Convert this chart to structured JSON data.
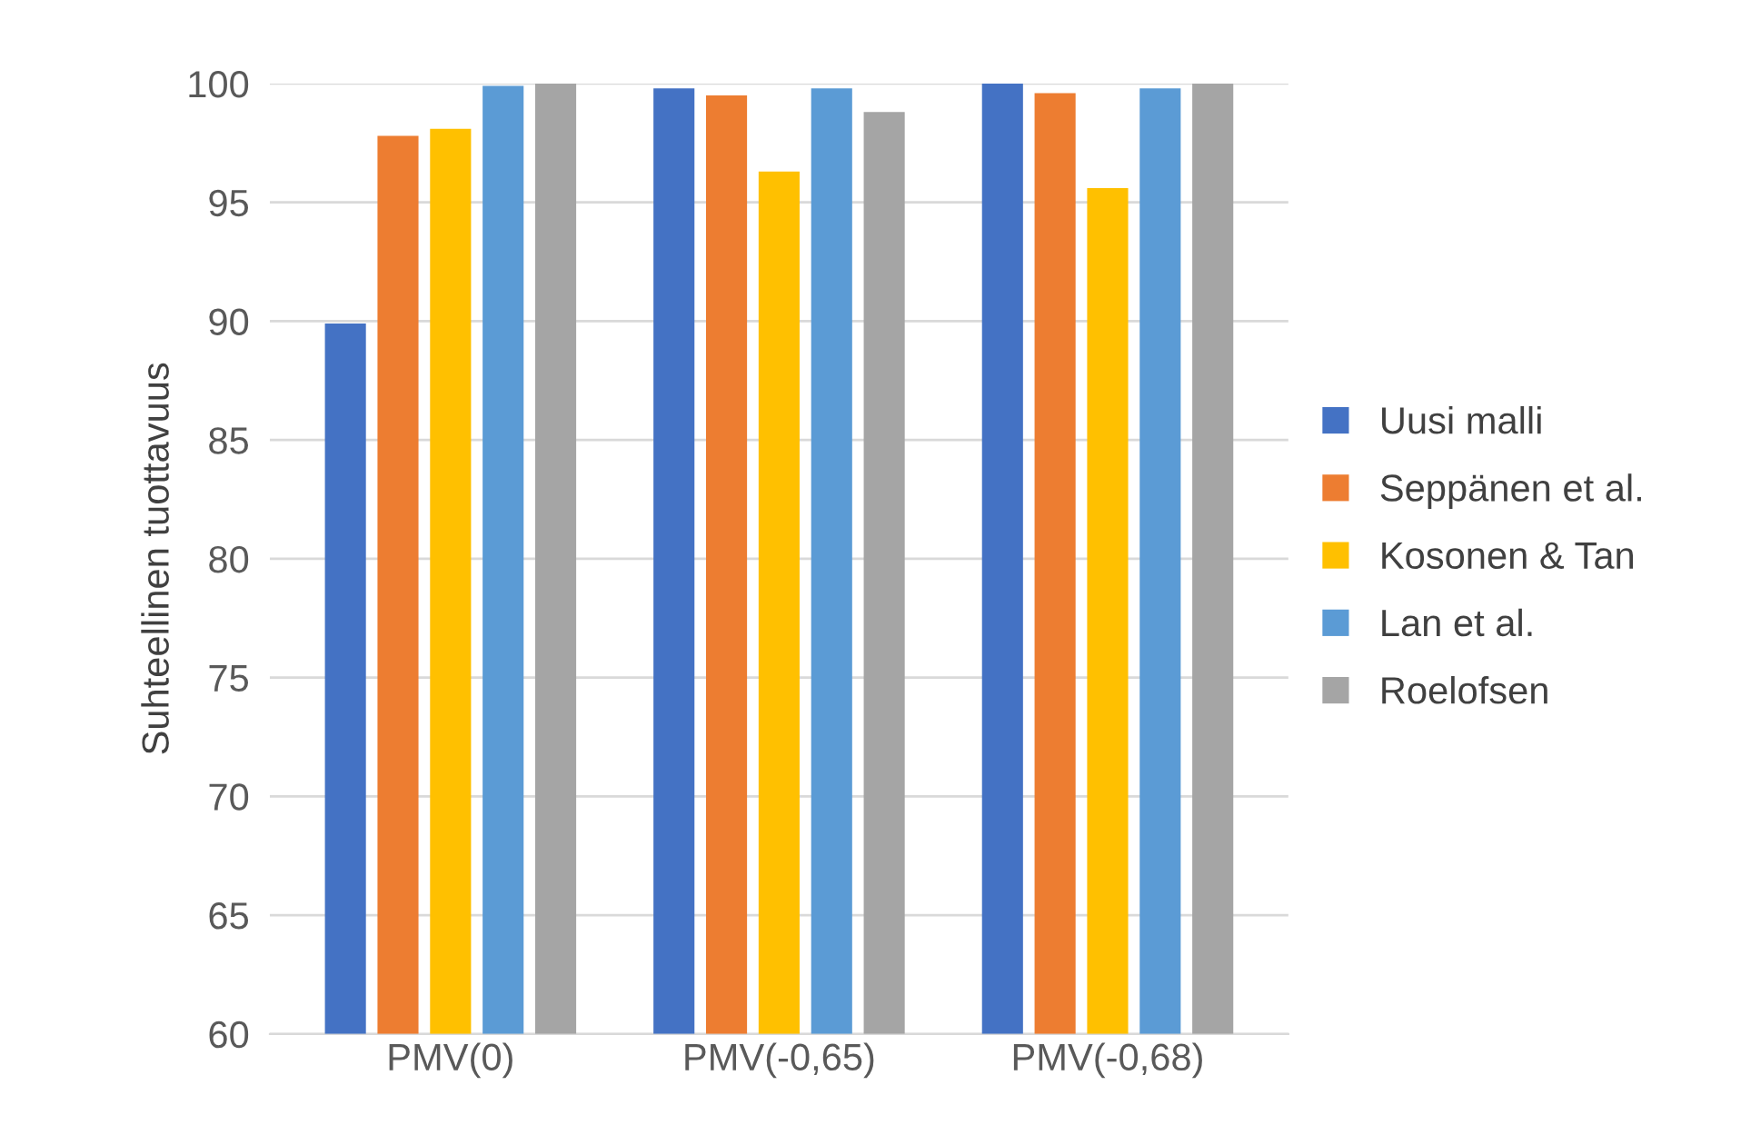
{
  "chart_data": {
    "type": "bar",
    "ylabel": "Suhteellinen tuottavuus",
    "categories": [
      "PMV(0)",
      "PMV(-0,65)",
      "PMV(-0,68)"
    ],
    "series": [
      {
        "name": "Uusi malli",
        "color": "#4472c4",
        "values": [
          89.9,
          99.8,
          100
        ]
      },
      {
        "name": "Seppänen et al.",
        "color": "#ed7d31",
        "values": [
          97.8,
          99.5,
          99.6
        ]
      },
      {
        "name": "Kosonen & Tan",
        "color": "#ffc000",
        "values": [
          98.1,
          96.3,
          95.6
        ]
      },
      {
        "name": "Lan et al.",
        "color": "#5b9bd5",
        "values": [
          99.9,
          99.8,
          99.8
        ]
      },
      {
        "name": "Roelofsen",
        "color": "#a5a5a5",
        "values": [
          100,
          98.8,
          100
        ]
      }
    ],
    "ylim": [
      60,
      100
    ],
    "yticks": [
      60,
      65,
      70,
      75,
      80,
      85,
      90,
      95,
      100
    ],
    "grid": "y",
    "legend": "right"
  }
}
